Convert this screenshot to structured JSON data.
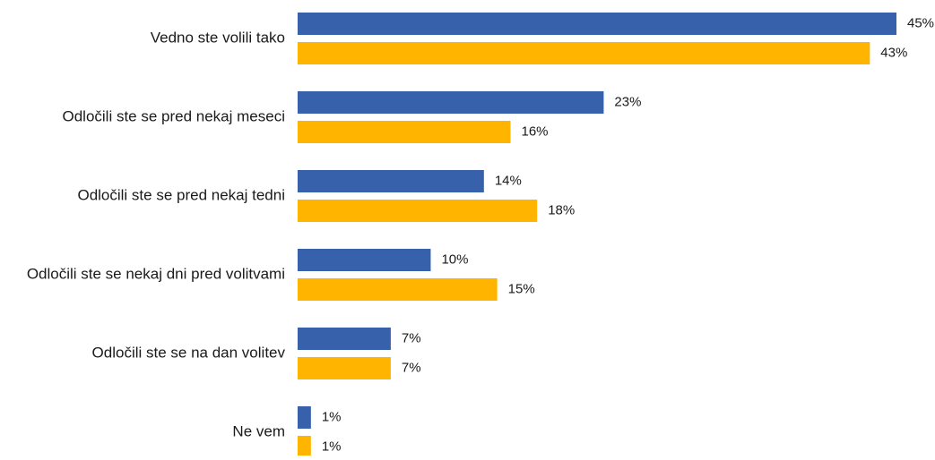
{
  "chart_data": {
    "type": "bar",
    "orientation": "horizontal",
    "categories": [
      "Vedno ste volili tako",
      "Odločili ste se pred nekaj meseci",
      "Odločili ste se pred nekaj tedni",
      "Odločili ste se nekaj dni pred volitvami",
      "Odločili ste se na dan volitev",
      "Ne vem"
    ],
    "series": [
      {
        "color": "#3762AB",
        "values": [
          45,
          23,
          14,
          10,
          7,
          1
        ],
        "labels": [
          "45%",
          "23%",
          "14%",
          "10%",
          "7%",
          "1%"
        ]
      },
      {
        "color": "#FFB500",
        "values": [
          43,
          16,
          18,
          15,
          7,
          1
        ],
        "labels": [
          "43%",
          "16%",
          "18%",
          "15%",
          "7%",
          "1%"
        ]
      }
    ],
    "xlim": [
      0,
      45
    ],
    "grid": false,
    "legend": "none"
  }
}
